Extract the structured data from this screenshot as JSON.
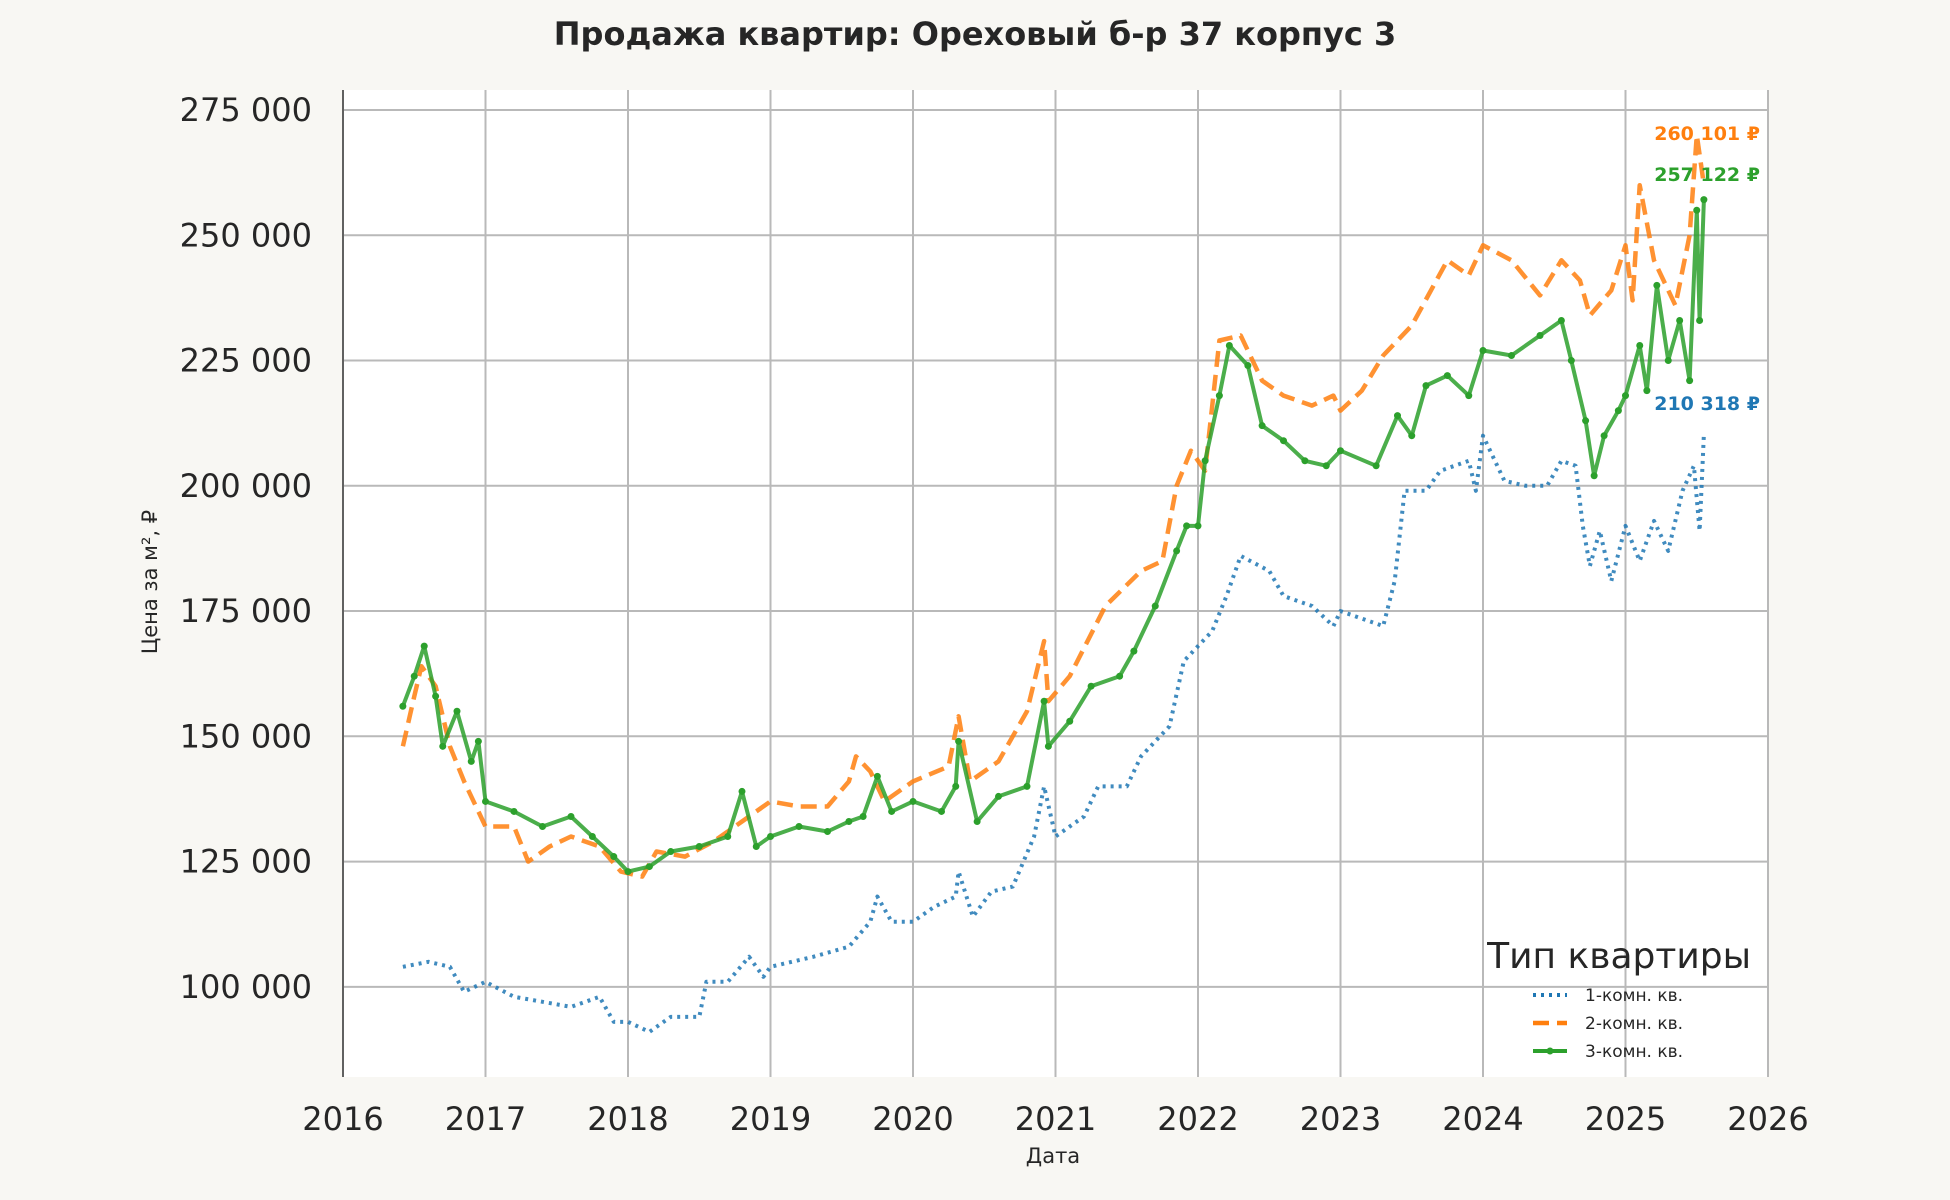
{
  "chart_data": {
    "type": "line",
    "title": "Продажа квартир: Ореховый б-р 37 корпус 3",
    "xlabel": "Дата",
    "ylabel": "Цена за м², ₽",
    "xlim": [
      2016,
      2026
    ],
    "ylim": [
      82000,
      279000
    ],
    "x_ticks": [
      "2016",
      "2017",
      "2018",
      "2019",
      "2020",
      "2021",
      "2022",
      "2023",
      "2024",
      "2025",
      "2026"
    ],
    "y_ticks": [
      "100 000",
      "125 000",
      "150 000",
      "175 000",
      "200 000",
      "225 000",
      "250 000",
      "275 000"
    ],
    "y_tick_values": [
      100000,
      125000,
      150000,
      175000,
      200000,
      225000,
      250000,
      275000
    ],
    "grid": true,
    "legend": {
      "title": "Тип квартиры",
      "placement": "lower-right"
    },
    "series": [
      {
        "name": "1-комн. кв.",
        "color": "#1f77b4",
        "style": "dotted",
        "end_label": "210 318 ₽",
        "points": [
          [
            2016.42,
            104000
          ],
          [
            2016.6,
            105000
          ],
          [
            2016.75,
            104000
          ],
          [
            2016.85,
            99000
          ],
          [
            2017.0,
            101000
          ],
          [
            2017.2,
            98000
          ],
          [
            2017.4,
            97000
          ],
          [
            2017.6,
            96000
          ],
          [
            2017.8,
            98000
          ],
          [
            2017.9,
            93000
          ],
          [
            2018.0,
            93000
          ],
          [
            2018.15,
            91000
          ],
          [
            2018.3,
            94000
          ],
          [
            2018.5,
            94000
          ],
          [
            2018.55,
            101000
          ],
          [
            2018.7,
            101000
          ],
          [
            2018.85,
            106000
          ],
          [
            2018.95,
            102000
          ],
          [
            2019.0,
            104000
          ],
          [
            2019.3,
            106000
          ],
          [
            2019.55,
            108000
          ],
          [
            2019.7,
            113000
          ],
          [
            2019.75,
            118000
          ],
          [
            2019.85,
            113000
          ],
          [
            2020.0,
            113000
          ],
          [
            2020.15,
            116000
          ],
          [
            2020.3,
            118000
          ],
          [
            2020.32,
            123000
          ],
          [
            2020.42,
            114000
          ],
          [
            2020.55,
            119000
          ],
          [
            2020.7,
            120000
          ],
          [
            2020.85,
            130000
          ],
          [
            2020.92,
            140000
          ],
          [
            2021.0,
            130000
          ],
          [
            2021.2,
            134000
          ],
          [
            2021.3,
            140000
          ],
          [
            2021.5,
            140000
          ],
          [
            2021.6,
            146000
          ],
          [
            2021.8,
            152000
          ],
          [
            2021.9,
            165000
          ],
          [
            2022.1,
            171000
          ],
          [
            2022.2,
            178000
          ],
          [
            2022.3,
            186000
          ],
          [
            2022.5,
            183000
          ],
          [
            2022.6,
            178000
          ],
          [
            2022.8,
            176000
          ],
          [
            2022.95,
            172000
          ],
          [
            2023.0,
            175000
          ],
          [
            2023.2,
            173000
          ],
          [
            2023.3,
            172000
          ],
          [
            2023.38,
            181000
          ],
          [
            2023.45,
            199000
          ],
          [
            2023.6,
            199000
          ],
          [
            2023.7,
            203000
          ],
          [
            2023.9,
            205000
          ],
          [
            2023.95,
            199000
          ],
          [
            2024.0,
            210000
          ],
          [
            2024.15,
            201000
          ],
          [
            2024.3,
            200000
          ],
          [
            2024.45,
            200000
          ],
          [
            2024.55,
            205000
          ],
          [
            2024.65,
            204000
          ],
          [
            2024.7,
            192000
          ],
          [
            2024.75,
            184000
          ],
          [
            2024.82,
            191000
          ],
          [
            2024.9,
            181000
          ],
          [
            2025.0,
            192000
          ],
          [
            2025.1,
            185000
          ],
          [
            2025.2,
            193000
          ],
          [
            2025.3,
            187000
          ],
          [
            2025.4,
            199000
          ],
          [
            2025.48,
            204000
          ],
          [
            2025.52,
            191000
          ],
          [
            2025.55,
            210318
          ]
        ]
      },
      {
        "name": "2-комн. кв.",
        "color": "#ff7f0e",
        "style": "dashed",
        "end_label": "260 101 ₽",
        "points": [
          [
            2016.42,
            148000
          ],
          [
            2016.5,
            158000
          ],
          [
            2016.55,
            164000
          ],
          [
            2016.65,
            160000
          ],
          [
            2016.75,
            148000
          ],
          [
            2016.85,
            141000
          ],
          [
            2016.95,
            135000
          ],
          [
            2017.0,
            132000
          ],
          [
            2017.2,
            132000
          ],
          [
            2017.3,
            125000
          ],
          [
            2017.45,
            128000
          ],
          [
            2017.6,
            130000
          ],
          [
            2017.8,
            128000
          ],
          [
            2017.95,
            123000
          ],
          [
            2018.1,
            122000
          ],
          [
            2018.2,
            127000
          ],
          [
            2018.4,
            126000
          ],
          [
            2018.6,
            129000
          ],
          [
            2018.8,
            133000
          ],
          [
            2019.0,
            137000
          ],
          [
            2019.2,
            136000
          ],
          [
            2019.4,
            136000
          ],
          [
            2019.55,
            141000
          ],
          [
            2019.6,
            146000
          ],
          [
            2019.7,
            143000
          ],
          [
            2019.8,
            137000
          ],
          [
            2020.0,
            141000
          ],
          [
            2020.25,
            144000
          ],
          [
            2020.32,
            154000
          ],
          [
            2020.4,
            141000
          ],
          [
            2020.6,
            145000
          ],
          [
            2020.8,
            155000
          ],
          [
            2020.92,
            169000
          ],
          [
            2020.95,
            157000
          ],
          [
            2021.1,
            162000
          ],
          [
            2021.35,
            176000
          ],
          [
            2021.6,
            183000
          ],
          [
            2021.75,
            185000
          ],
          [
            2021.85,
            200000
          ],
          [
            2021.95,
            207000
          ],
          [
            2022.05,
            203000
          ],
          [
            2022.15,
            229000
          ],
          [
            2022.3,
            230000
          ],
          [
            2022.45,
            221000
          ],
          [
            2022.6,
            218000
          ],
          [
            2022.8,
            216000
          ],
          [
            2022.95,
            218000
          ],
          [
            2023.0,
            215000
          ],
          [
            2023.15,
            219000
          ],
          [
            2023.3,
            226000
          ],
          [
            2023.5,
            232000
          ],
          [
            2023.75,
            245000
          ],
          [
            2023.9,
            242000
          ],
          [
            2024.0,
            248000
          ],
          [
            2024.2,
            245000
          ],
          [
            2024.4,
            238000
          ],
          [
            2024.55,
            245000
          ],
          [
            2024.68,
            241000
          ],
          [
            2024.75,
            234000
          ],
          [
            2024.9,
            239000
          ],
          [
            2025.0,
            248000
          ],
          [
            2025.05,
            237000
          ],
          [
            2025.1,
            260000
          ],
          [
            2025.2,
            245000
          ],
          [
            2025.35,
            236000
          ],
          [
            2025.45,
            250000
          ],
          [
            2025.5,
            270000
          ],
          [
            2025.55,
            260101
          ]
        ]
      },
      {
        "name": "3-комн. кв.",
        "color": "#2ca02c",
        "style": "solid-markers",
        "end_label": "257 122 ₽",
        "points": [
          [
            2016.42,
            156000
          ],
          [
            2016.5,
            162000
          ],
          [
            2016.57,
            168000
          ],
          [
            2016.65,
            158000
          ],
          [
            2016.7,
            148000
          ],
          [
            2016.8,
            155000
          ],
          [
            2016.9,
            145000
          ],
          [
            2016.95,
            149000
          ],
          [
            2017.0,
            137000
          ],
          [
            2017.2,
            135000
          ],
          [
            2017.4,
            132000
          ],
          [
            2017.6,
            134000
          ],
          [
            2017.75,
            130000
          ],
          [
            2017.9,
            126000
          ],
          [
            2018.0,
            123000
          ],
          [
            2018.15,
            124000
          ],
          [
            2018.3,
            127000
          ],
          [
            2018.5,
            128000
          ],
          [
            2018.7,
            130000
          ],
          [
            2018.8,
            139000
          ],
          [
            2018.9,
            128000
          ],
          [
            2019.0,
            130000
          ],
          [
            2019.2,
            132000
          ],
          [
            2019.4,
            131000
          ],
          [
            2019.55,
            133000
          ],
          [
            2019.65,
            134000
          ],
          [
            2019.75,
            142000
          ],
          [
            2019.85,
            135000
          ],
          [
            2020.0,
            137000
          ],
          [
            2020.2,
            135000
          ],
          [
            2020.3,
            140000
          ],
          [
            2020.32,
            149000
          ],
          [
            2020.45,
            133000
          ],
          [
            2020.6,
            138000
          ],
          [
            2020.8,
            140000
          ],
          [
            2020.92,
            157000
          ],
          [
            2020.95,
            148000
          ],
          [
            2021.1,
            153000
          ],
          [
            2021.25,
            160000
          ],
          [
            2021.45,
            162000
          ],
          [
            2021.55,
            167000
          ],
          [
            2021.7,
            176000
          ],
          [
            2021.85,
            187000
          ],
          [
            2021.92,
            192000
          ],
          [
            2022.0,
            192000
          ],
          [
            2022.05,
            205000
          ],
          [
            2022.15,
            218000
          ],
          [
            2022.22,
            228000
          ],
          [
            2022.35,
            224000
          ],
          [
            2022.45,
            212000
          ],
          [
            2022.6,
            209000
          ],
          [
            2022.75,
            205000
          ],
          [
            2022.9,
            204000
          ],
          [
            2023.0,
            207000
          ],
          [
            2023.25,
            204000
          ],
          [
            2023.4,
            214000
          ],
          [
            2023.5,
            210000
          ],
          [
            2023.6,
            220000
          ],
          [
            2023.75,
            222000
          ],
          [
            2023.9,
            218000
          ],
          [
            2024.0,
            227000
          ],
          [
            2024.2,
            226000
          ],
          [
            2024.4,
            230000
          ],
          [
            2024.55,
            233000
          ],
          [
            2024.62,
            225000
          ],
          [
            2024.72,
            213000
          ],
          [
            2024.78,
            202000
          ],
          [
            2024.85,
            210000
          ],
          [
            2024.95,
            215000
          ],
          [
            2025.0,
            218000
          ],
          [
            2025.1,
            228000
          ],
          [
            2025.15,
            219000
          ],
          [
            2025.22,
            240000
          ],
          [
            2025.3,
            225000
          ],
          [
            2025.38,
            233000
          ],
          [
            2025.45,
            221000
          ],
          [
            2025.5,
            255000
          ],
          [
            2025.52,
            233000
          ],
          [
            2025.55,
            257122
          ]
        ]
      }
    ]
  }
}
